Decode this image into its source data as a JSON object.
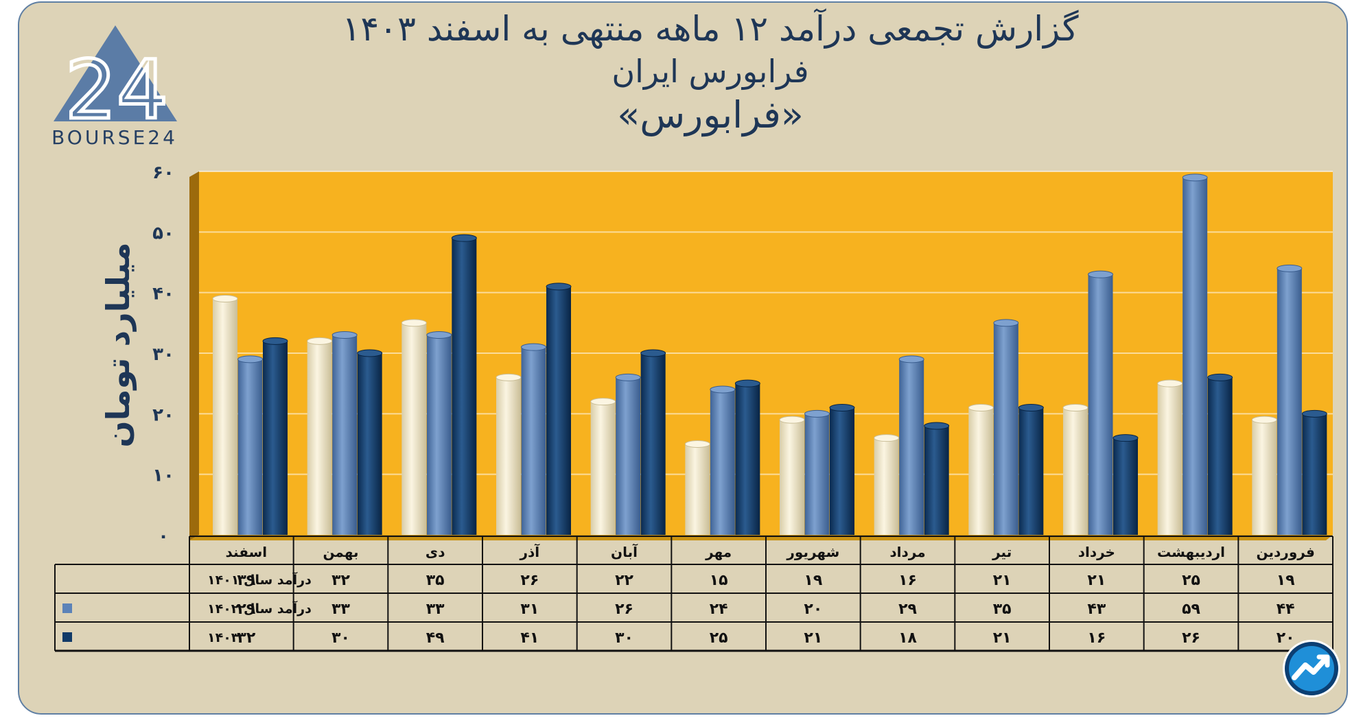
{
  "header": {
    "title": "گزارش تجمعی درآمد ۱۲ ماهه منتهی به اسفند ۱۴۰۳",
    "company": "فرابورس ایران",
    "symbol": "«فرابورس»"
  },
  "logo": {
    "text": "BOURSE24",
    "mark": "24",
    "icon": "bourse24-logo"
  },
  "badge": {
    "icon": "trend-up-icon"
  },
  "colors": {
    "background": "#ddd3b7",
    "plot": "#f7b21f",
    "series": [
      "#efe6c9",
      "#5b82b8",
      "#113a68"
    ],
    "text": "#1e3656"
  },
  "chart_data": {
    "type": "bar",
    "ylabel": "میلیارد تومان",
    "ylim": [
      0,
      60
    ],
    "yticks": [
      "۰",
      "۱۰",
      "۲۰",
      "۳۰",
      "۴۰",
      "۵۰",
      "۶۰"
    ],
    "categories": [
      "فروردین",
      "اردیبهشت",
      "خرداد",
      "تیر",
      "مرداد",
      "شهریور",
      "مهر",
      "آبان",
      "آذر",
      "دی",
      "بهمن",
      "اسفند"
    ],
    "series": [
      {
        "name": "درآمد  سال ۱۴۰۱",
        "values": [
          19,
          25,
          21,
          21,
          16,
          19,
          15,
          22,
          26,
          35,
          32,
          39
        ],
        "labels": [
          "۱۹",
          "۲۵",
          "۲۱",
          "۲۱",
          "۱۶",
          "۱۹",
          "۱۵",
          "۲۲",
          "۲۶",
          "۳۵",
          "۳۲",
          "۳۹"
        ]
      },
      {
        "name": "درآمد  سال ۱۴۰۲",
        "values": [
          44,
          59,
          43,
          35,
          29,
          20,
          24,
          26,
          31,
          33,
          33,
          29
        ],
        "labels": [
          "۴۴",
          "۵۹",
          "۴۳",
          "۳۵",
          "۲۹",
          "۲۰",
          "۲۴",
          "۲۶",
          "۳۱",
          "۳۳",
          "۳۳",
          "۲۹"
        ]
      },
      {
        "name": "۱۴۰۳",
        "values": [
          20,
          26,
          16,
          21,
          18,
          21,
          25,
          30,
          41,
          49,
          30,
          32
        ],
        "labels": [
          "۲۰",
          "۲۶",
          "۱۶",
          "۲۱",
          "۱۸",
          "۲۱",
          "۲۵",
          "۳۰",
          "۴۱",
          "۴۹",
          "۳۰",
          "۳۲"
        ]
      }
    ],
    "grid": true,
    "legend": "data-table"
  }
}
